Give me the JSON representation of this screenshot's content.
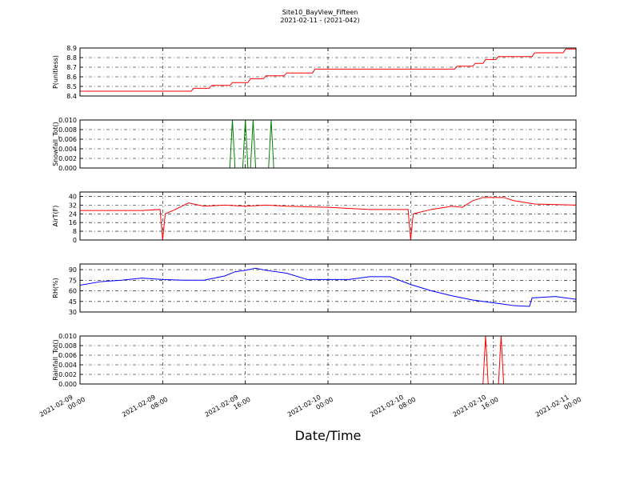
{
  "figure": {
    "title": "Site10_BayView_Fifteen",
    "subtitle": "2021-02-11 - (2021-042)",
    "xlabel": "Date/Time",
    "xlim": [
      "2021-02-09 00:00",
      "2021-02-11 00:00"
    ],
    "xticks": [
      "2021-02-09 00:00",
      "2021-02-09 08:00",
      "2021-02-09 16:00",
      "2021-02-10 00:00",
      "2021-02-10 08:00",
      "2021-02-10 16:00",
      "2021-02-11 00:00"
    ]
  },
  "chart_data": [
    {
      "type": "line",
      "ylabel": "P(unitless)",
      "ylim": [
        8.4,
        8.9
      ],
      "yticks": [
        8.4,
        8.5,
        8.6,
        8.7,
        8.8,
        8.9
      ],
      "grid": true,
      "x": [
        "2021-02-09 00:00",
        "2021-02-09 10:45",
        "2021-02-09 11:00",
        "2021-02-09 12:30",
        "2021-02-09 12:45",
        "2021-02-09 14:30",
        "2021-02-09 14:45",
        "2021-02-09 16:15",
        "2021-02-09 16:30",
        "2021-02-09 17:45",
        "2021-02-09 18:00",
        "2021-02-09 19:45",
        "2021-02-09 20:00",
        "2021-02-09 22:30",
        "2021-02-09 22:45",
        "2021-02-10 12:15",
        "2021-02-10 12:30",
        "2021-02-10 14:00",
        "2021-02-10 14:15",
        "2021-02-10 15:00",
        "2021-02-10 15:15",
        "2021-02-10 16:15",
        "2021-02-10 16:30",
        "2021-02-10 19:45",
        "2021-02-10 20:00",
        "2021-02-10 22:45",
        "2021-02-10 23:00",
        "2021-02-11 00:00"
      ],
      "series": [
        {
          "color": "#ff0000",
          "values": [
            8.45,
            8.45,
            8.48,
            8.48,
            8.51,
            8.51,
            8.54,
            8.54,
            8.58,
            8.58,
            8.61,
            8.61,
            8.64,
            8.64,
            8.68,
            8.68,
            8.71,
            8.71,
            8.74,
            8.74,
            8.78,
            8.78,
            8.81,
            8.81,
            8.85,
            8.85,
            8.89,
            8.89
          ]
        }
      ]
    },
    {
      "type": "line",
      "ylabel": "Snowfall_Tot()",
      "ylim": [
        0,
        0.01
      ],
      "yticks": [
        {
          "value": 0,
          "label": "0.000"
        },
        0.002,
        0.004,
        0.006,
        0.008,
        {
          "value": 0.01,
          "label": "0.010"
        }
      ],
      "grid": true,
      "x": [
        "2021-02-09 00:00",
        "2021-02-09 14:30",
        "2021-02-09 14:45",
        "2021-02-09 15:00",
        "2021-02-09 15:45",
        "2021-02-09 16:00",
        "2021-02-09 16:15",
        "2021-02-09 16:30",
        "2021-02-09 16:45",
        "2021-02-09 17:00",
        "2021-02-09 18:15",
        "2021-02-09 18:30",
        "2021-02-09 18:45",
        "2021-02-11 00:00"
      ],
      "series": [
        {
          "color": "#007f00",
          "values": [
            0,
            0,
            0.01,
            0,
            0,
            0.01,
            0,
            0,
            0.01,
            0,
            0,
            0.01,
            0,
            0
          ]
        }
      ]
    },
    {
      "type": "line",
      "ylabel": "AirT(F)",
      "ylim": [
        0,
        44
      ],
      "yticks": [
        0,
        8,
        16,
        24,
        32,
        40
      ],
      "grid": true,
      "x": [
        "2021-02-09 00:00",
        "2021-02-09 02:00",
        "2021-02-09 04:00",
        "2021-02-09 06:00",
        "2021-02-09 07:45",
        "2021-02-09 08:00",
        "2021-02-09 08:15",
        "2021-02-09 09:00",
        "2021-02-09 10:30",
        "2021-02-09 12:00",
        "2021-02-09 14:00",
        "2021-02-09 16:00",
        "2021-02-09 18:00",
        "2021-02-09 20:00",
        "2021-02-10 00:00",
        "2021-02-10 04:00",
        "2021-02-10 07:45",
        "2021-02-10 08:00",
        "2021-02-10 08:15",
        "2021-02-10 10:00",
        "2021-02-10 12:00",
        "2021-02-10 13:00",
        "2021-02-10 14:00",
        "2021-02-10 15:00",
        "2021-02-10 17:00",
        "2021-02-10 18:00",
        "2021-02-10 20:00",
        "2021-02-11 00:00"
      ],
      "series": [
        {
          "color": "#ff0000",
          "values": [
            27,
            27,
            27,
            27,
            28,
            0,
            24,
            27,
            34,
            31,
            32,
            31,
            32,
            31,
            30,
            28,
            28,
            0,
            24,
            28,
            31,
            30,
            36,
            39,
            39,
            36,
            33,
            32
          ]
        }
      ]
    },
    {
      "type": "line",
      "ylabel": "RH(%)",
      "ylim": [
        30,
        98
      ],
      "yticks": [
        30,
        45,
        60,
        75,
        90
      ],
      "grid": true,
      "x": [
        "2021-02-09 00:00",
        "2021-02-09 02:00",
        "2021-02-09 04:00",
        "2021-02-09 06:00",
        "2021-02-09 08:00",
        "2021-02-09 10:00",
        "2021-02-09 12:00",
        "2021-02-09 14:00",
        "2021-02-09 15:00",
        "2021-02-09 16:00",
        "2021-02-09 17:00",
        "2021-02-09 18:00",
        "2021-02-09 20:00",
        "2021-02-09 22:00",
        "2021-02-10 00:00",
        "2021-02-10 02:00",
        "2021-02-10 04:00",
        "2021-02-10 06:00",
        "2021-02-10 08:00",
        "2021-02-10 10:00",
        "2021-02-10 12:00",
        "2021-02-10 14:00",
        "2021-02-10 16:00",
        "2021-02-10 18:00",
        "2021-02-10 19:30",
        "2021-02-10 19:45",
        "2021-02-10 22:00",
        "2021-02-11 00:00"
      ],
      "series": [
        {
          "color": "#0000ff",
          "values": [
            68,
            73,
            75,
            78,
            76,
            75,
            75,
            81,
            87,
            89,
            92,
            89,
            85,
            76,
            76,
            76,
            80,
            80,
            69,
            60,
            53,
            47,
            43,
            39,
            38,
            50,
            52,
            48
          ]
        }
      ]
    },
    {
      "type": "line",
      "ylabel": "Rainfall_Tot()",
      "ylim": [
        0,
        0.01
      ],
      "yticks": [
        {
          "value": 0,
          "label": "0.000"
        },
        0.002,
        0.004,
        0.006,
        0.008,
        {
          "value": 0.01,
          "label": "0.010"
        }
      ],
      "grid": true,
      "x": [
        "2021-02-09 00:00",
        "2021-02-10 15:00",
        "2021-02-10 15:15",
        "2021-02-10 15:30",
        "2021-02-10 16:30",
        "2021-02-10 16:45",
        "2021-02-10 17:00",
        "2021-02-11 00:00"
      ],
      "series": [
        {
          "color": "#ff0000",
          "values": [
            0,
            0,
            0.01,
            0,
            0,
            0.01,
            0,
            0
          ]
        }
      ]
    }
  ]
}
